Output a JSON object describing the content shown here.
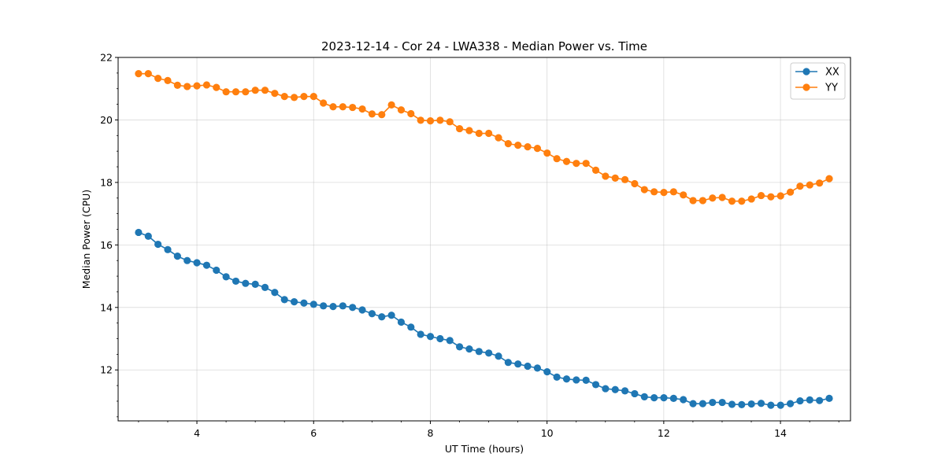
{
  "chart_data": {
    "type": "line",
    "title": "2023-12-14 - Cor 24 - LWA338 - Median Power vs. Time",
    "xlabel": "UT Time (hours)",
    "ylabel": "Median Power (CPU)",
    "xlim": [
      2.65,
      15.2
    ],
    "ylim": [
      10.37,
      22.0
    ],
    "xticks": [
      4,
      6,
      8,
      10,
      12,
      14
    ],
    "xtick_labels": [
      "4",
      "6",
      "8",
      "10",
      "12",
      "14"
    ],
    "yticks": [
      12,
      14,
      16,
      18,
      20,
      22
    ],
    "ytick_labels": [
      "12",
      "14",
      "16",
      "18",
      "20",
      "22"
    ],
    "grid": true,
    "legend_position": "top-right",
    "x_start": 3.0,
    "x_step": 0.1667,
    "series": [
      {
        "name": "XX",
        "color": "#1f77b4",
        "values": [
          16.4,
          16.28,
          16.02,
          15.85,
          15.64,
          15.5,
          15.43,
          15.35,
          15.19,
          14.98,
          14.84,
          14.77,
          14.74,
          14.64,
          14.48,
          14.25,
          14.18,
          14.14,
          14.1,
          14.05,
          14.03,
          14.05,
          14.0,
          13.92,
          13.8,
          13.7,
          13.75,
          13.53,
          13.37,
          13.14,
          13.07,
          13.0,
          12.94,
          12.74,
          12.67,
          12.59,
          12.54,
          12.44,
          12.24,
          12.19,
          12.12,
          12.06,
          11.94,
          11.77,
          11.71,
          11.68,
          11.67,
          11.53,
          11.4,
          11.37,
          11.33,
          11.24,
          11.14,
          11.11,
          11.11,
          11.09,
          11.05,
          10.92,
          10.92,
          10.96,
          10.96,
          10.9,
          10.89,
          10.91,
          10.93,
          10.87,
          10.87,
          10.92,
          11.01,
          11.04,
          11.02,
          11.09
        ]
      },
      {
        "name": "YY",
        "color": "#ff7f0e",
        "values": [
          21.48,
          21.48,
          21.33,
          21.26,
          21.11,
          21.07,
          21.09,
          21.12,
          21.04,
          20.9,
          20.9,
          20.9,
          20.95,
          20.95,
          20.85,
          20.75,
          20.72,
          20.75,
          20.75,
          20.54,
          20.42,
          20.42,
          20.4,
          20.35,
          20.19,
          20.17,
          20.48,
          20.32,
          20.2,
          19.99,
          19.97,
          19.99,
          19.94,
          19.72,
          19.66,
          19.57,
          19.57,
          19.43,
          19.24,
          19.19,
          19.14,
          19.09,
          18.94,
          18.76,
          18.67,
          18.61,
          18.61,
          18.39,
          18.2,
          18.14,
          18.09,
          17.96,
          17.77,
          17.7,
          17.68,
          17.7,
          17.6,
          17.42,
          17.42,
          17.5,
          17.52,
          17.4,
          17.4,
          17.47,
          17.58,
          17.54,
          17.57,
          17.69,
          17.88,
          17.92,
          17.98,
          18.12
        ]
      }
    ]
  }
}
